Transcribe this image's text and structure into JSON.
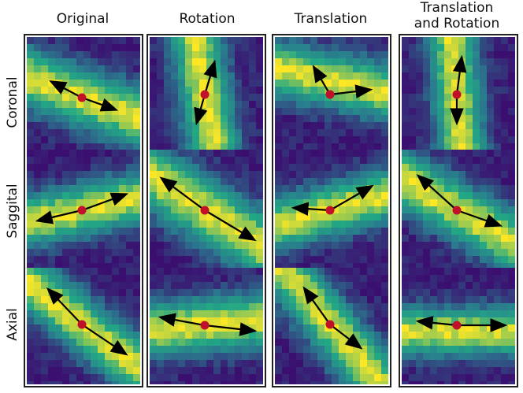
{
  "columns": [
    {
      "title": "Original"
    },
    {
      "title": "Rotation"
    },
    {
      "title": "Translation"
    },
    {
      "title": "Translation\nand Rotation"
    }
  ],
  "rows": [
    {
      "label": "Coronal"
    },
    {
      "label": "Saggital"
    },
    {
      "label": "Axial"
    }
  ],
  "colors": {
    "low": "#3b0f70",
    "mid1": "#2a788e",
    "mid2": "#22a884",
    "high": "#fde725",
    "arrow": "#000000",
    "center": "#c0102a",
    "frame": "#222222"
  }
}
